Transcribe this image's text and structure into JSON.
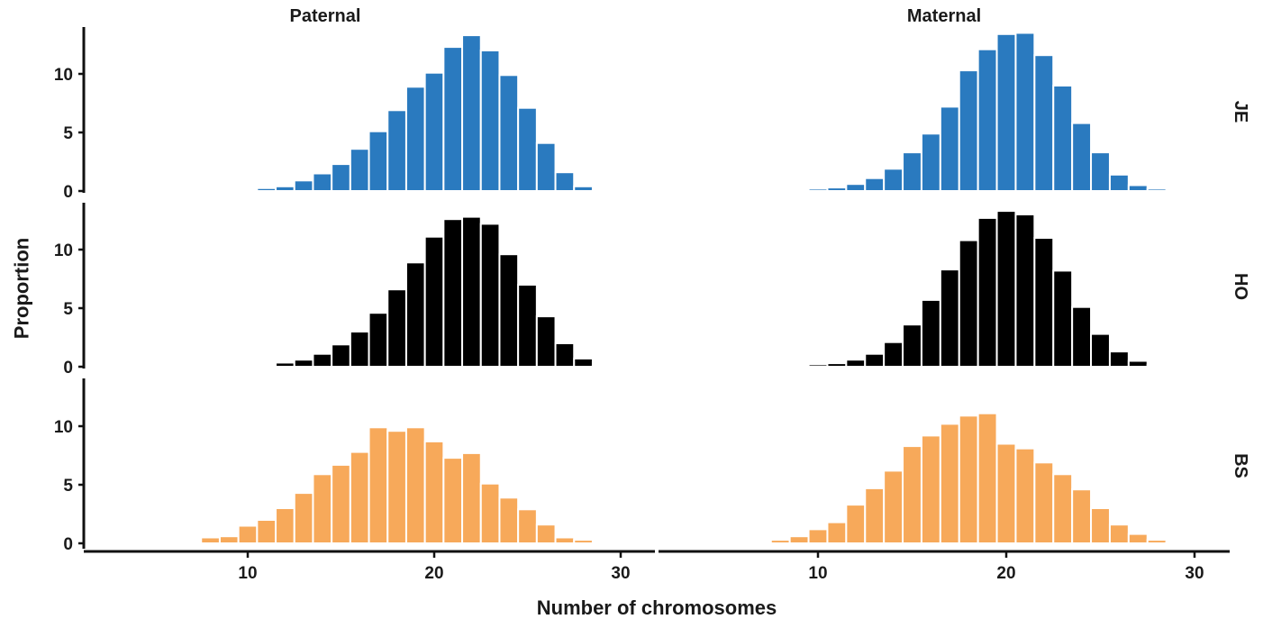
{
  "chart_data": {
    "type": "bar",
    "xlabel": "Number of chromosomes",
    "ylabel": "Proportion",
    "xlim": [
      2,
      32
    ],
    "ylim": [
      0,
      14
    ],
    "xticks": [
      10,
      20,
      30
    ],
    "yticks": [
      0,
      5,
      10
    ],
    "columns": [
      "Paternal",
      "Maternal"
    ],
    "rows": [
      "JE",
      "HO",
      "BS"
    ],
    "colors": {
      "JE": "#2a7abf",
      "HO": "#000000",
      "BS": "#f7a95a"
    },
    "grid": false,
    "panels": [
      {
        "row": "JE",
        "column": "Paternal",
        "x": [
          9,
          10,
          11,
          12,
          13,
          14,
          15,
          16,
          17,
          18,
          19,
          20,
          21,
          22,
          23,
          24,
          25,
          26,
          27,
          28,
          29
        ],
        "values": [
          0.05,
          0.1,
          0.25,
          0.4,
          0.9,
          1.5,
          2.3,
          3.6,
          5.1,
          6.9,
          8.9,
          10.1,
          12.3,
          13.3,
          12.0,
          9.9,
          7.1,
          4.1,
          1.6,
          0.4,
          0.1
        ]
      },
      {
        "row": "JE",
        "column": "Maternal",
        "x": [
          8,
          9,
          10,
          11,
          12,
          13,
          14,
          15,
          16,
          17,
          18,
          19,
          20,
          21,
          22,
          23,
          24,
          25,
          26,
          27,
          28
        ],
        "values": [
          0.05,
          0.1,
          0.2,
          0.3,
          0.6,
          1.1,
          1.9,
          3.3,
          4.9,
          7.2,
          10.3,
          12.1,
          13.4,
          13.5,
          11.6,
          9.0,
          5.8,
          3.3,
          1.4,
          0.5,
          0.2
        ]
      },
      {
        "row": "HO",
        "column": "Paternal",
        "x": [
          10,
          11,
          12,
          13,
          14,
          15,
          16,
          17,
          18,
          19,
          20,
          21,
          22,
          23,
          24,
          25,
          26,
          27,
          28,
          29
        ],
        "values": [
          0.05,
          0.15,
          0.35,
          0.6,
          1.1,
          1.9,
          3.0,
          4.6,
          6.6,
          8.9,
          11.1,
          12.6,
          12.8,
          12.2,
          9.6,
          7.0,
          4.3,
          2.0,
          0.7,
          0.1
        ]
      },
      {
        "row": "HO",
        "column": "Maternal",
        "x": [
          8,
          9,
          10,
          11,
          12,
          13,
          14,
          15,
          16,
          17,
          18,
          19,
          20,
          21,
          22,
          23,
          24,
          25,
          26,
          27,
          28
        ],
        "values": [
          0.05,
          0.1,
          0.2,
          0.3,
          0.6,
          1.1,
          2.1,
          3.6,
          5.7,
          8.3,
          10.8,
          12.7,
          13.3,
          13.0,
          11.0,
          8.2,
          5.1,
          2.8,
          1.3,
          0.5,
          0.15
        ]
      },
      {
        "row": "BS",
        "column": "Paternal",
        "x": [
          5,
          6,
          7,
          8,
          9,
          10,
          11,
          12,
          13,
          14,
          15,
          16,
          17,
          18,
          19,
          20,
          21,
          22,
          23,
          24,
          25,
          26,
          27,
          28,
          29
        ],
        "values": [
          0.05,
          0.05,
          0.1,
          0.5,
          0.6,
          1.5,
          2.0,
          3.0,
          4.3,
          5.9,
          6.7,
          7.8,
          9.9,
          9.6,
          9.9,
          8.7,
          7.3,
          7.7,
          5.1,
          3.9,
          2.9,
          1.6,
          0.5,
          0.3,
          0.05
        ]
      },
      {
        "row": "BS",
        "column": "Maternal",
        "x": [
          5,
          6,
          7,
          8,
          9,
          10,
          11,
          12,
          13,
          14,
          15,
          16,
          17,
          18,
          19,
          20,
          21,
          22,
          23,
          24,
          25,
          26,
          27,
          28,
          29
        ],
        "values": [
          0.05,
          0.15,
          0.15,
          0.3,
          0.6,
          1.2,
          1.8,
          3.3,
          4.7,
          6.2,
          8.3,
          9.2,
          10.2,
          10.9,
          11.1,
          8.5,
          8.1,
          6.9,
          5.9,
          4.6,
          3.0,
          1.6,
          0.8,
          0.3,
          0.05
        ]
      }
    ]
  }
}
